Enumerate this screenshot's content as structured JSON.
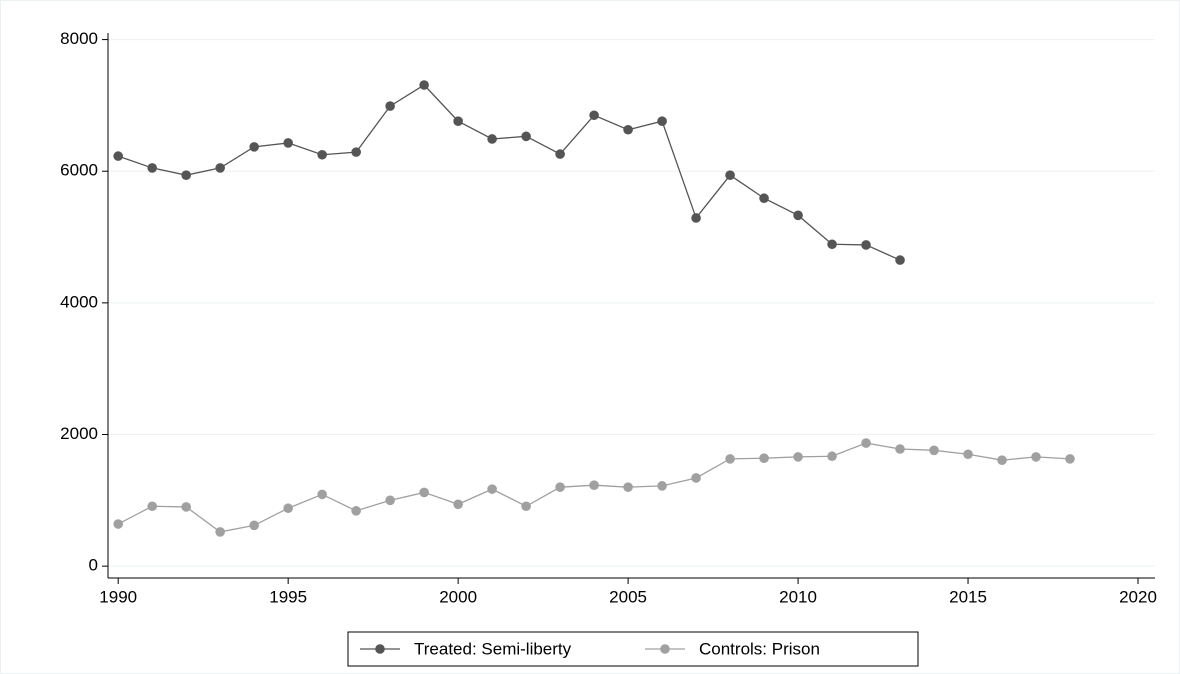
{
  "chart_data": {
    "type": "line",
    "x": [
      1990,
      1991,
      1992,
      1993,
      1994,
      1995,
      1996,
      1997,
      1998,
      1999,
      2000,
      2001,
      2002,
      2003,
      2004,
      2005,
      2006,
      2007,
      2008,
      2009,
      2010,
      2011,
      2012,
      2013,
      2014,
      2015,
      2016,
      2017,
      2018
    ],
    "series": [
      {
        "name": "Treated: Semi-liberty",
        "color": "#555555",
        "values": [
          6230,
          6050,
          5940,
          6050,
          6370,
          6430,
          6250,
          6290,
          6990,
          7310,
          6760,
          6490,
          6530,
          6260,
          6850,
          6630,
          6760,
          5290,
          5940,
          5590,
          5330,
          4890,
          4880,
          4650,
          null,
          null,
          null,
          null,
          null
        ]
      },
      {
        "name": "Controls: Prison",
        "color": "#a0a0a0",
        "values": [
          640,
          910,
          900,
          520,
          620,
          880,
          1090,
          840,
          1000,
          1120,
          940,
          1170,
          910,
          1200,
          1230,
          1200,
          1220,
          1340,
          1630,
          1640,
          1660,
          1670,
          1870,
          1780,
          1760,
          1700,
          1610,
          1660,
          1630
        ]
      }
    ],
    "xlim": [
      1989.7,
      2020.5
    ],
    "xticks": [
      1990,
      1995,
      2000,
      2005,
      2010,
      2015,
      2020
    ],
    "ylim": [
      -180,
      8100
    ],
    "yticks": [
      0,
      2000,
      4000,
      6000,
      8000
    ],
    "grid": true,
    "legend": "bottom"
  }
}
